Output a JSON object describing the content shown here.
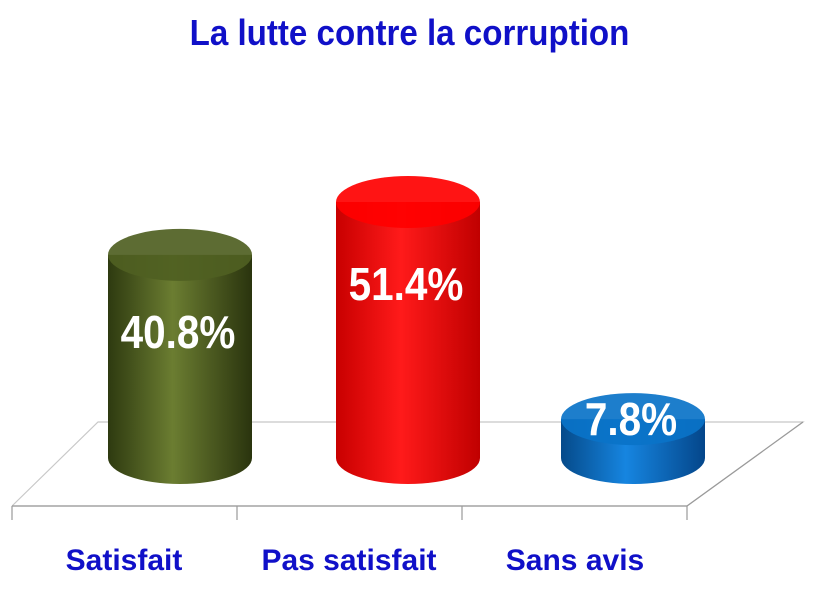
{
  "chart_data": {
    "type": "bar",
    "title": "La lutte contre la corruption",
    "categories": [
      "Satisfait",
      "Pas satisfait",
      "Sans avis"
    ],
    "values": [
      40.8,
      51.4,
      7.8
    ],
    "value_labels": [
      "40.8%",
      "51.4%",
      "7.8%"
    ],
    "ylim": [
      0,
      60
    ],
    "grid": false,
    "legend": "none",
    "colors": [
      "#4f5f22",
      "#ff0000",
      "#0a73c8"
    ]
  }
}
